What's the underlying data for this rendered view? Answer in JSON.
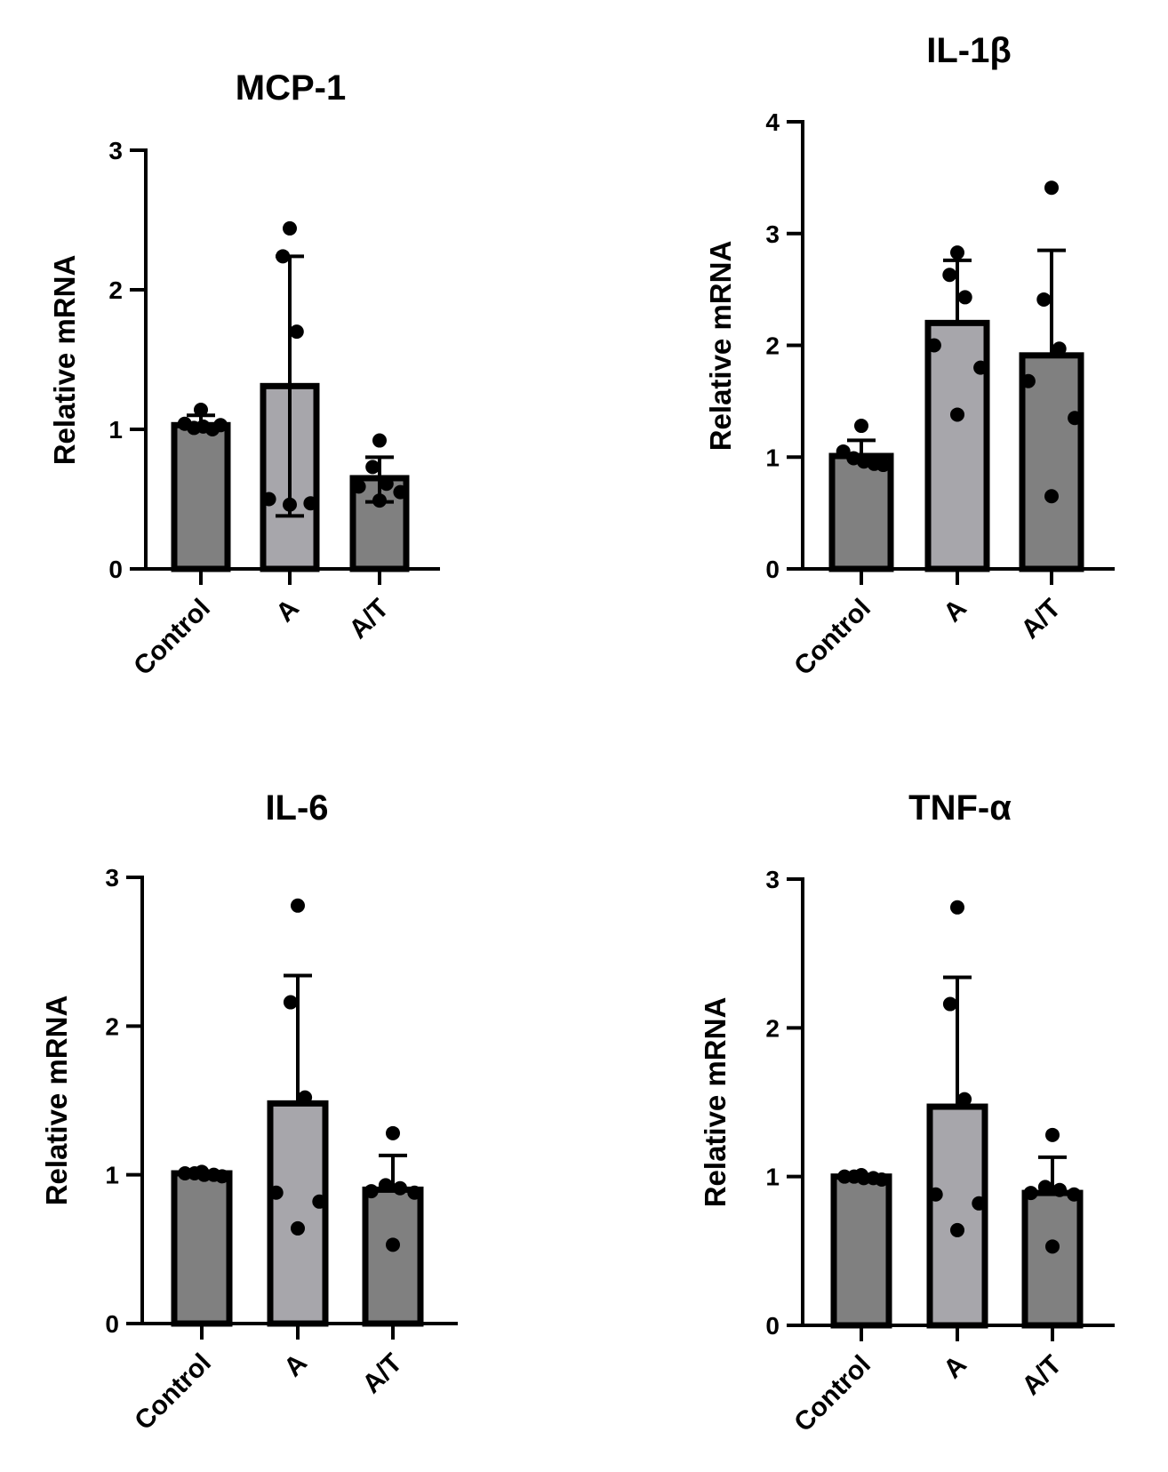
{
  "figure": {
    "colors": {
      "bar_dark": "#808080",
      "bar_light": "#a7a6ab",
      "ink": "#000000"
    }
  },
  "chart_data": [
    {
      "type": "bar",
      "title": "MCP-1",
      "ylabel": "Relative mRNA",
      "xlabel": "",
      "ylim": [
        0,
        3
      ],
      "yticks": [
        "0",
        "1",
        "2",
        "3"
      ],
      "categories": [
        "Control",
        "A",
        "A/T"
      ],
      "values": [
        1.03,
        1.31,
        0.65
      ],
      "error_upper": [
        1.1,
        2.24,
        0.8
      ],
      "error_lower": [
        null,
        0.38,
        0.48
      ],
      "points": [
        [
          1.14,
          1.04,
          1.01,
          1.02,
          1.0,
          1.03
        ],
        [
          2.44,
          2.24,
          1.7,
          0.5,
          0.47,
          0.46
        ],
        [
          0.92,
          0.73,
          0.61,
          0.59,
          0.55,
          0.49
        ]
      ]
    },
    {
      "type": "bar",
      "title": "IL-1β",
      "ylabel": "Relative mRNA",
      "xlabel": "",
      "ylim": [
        0,
        4
      ],
      "yticks": [
        "0",
        "1",
        "2",
        "3",
        "4"
      ],
      "categories": [
        "Control",
        "A",
        "A/T"
      ],
      "values": [
        1.01,
        2.2,
        1.91
      ],
      "error_upper": [
        1.15,
        2.76,
        2.85
      ],
      "error_lower": [
        null,
        null,
        null
      ],
      "points": [
        [
          1.28,
          1.05,
          0.99,
          0.96,
          0.94,
          0.93
        ],
        [
          2.83,
          2.63,
          2.43,
          2.0,
          1.8,
          1.38
        ],
        [
          3.41,
          2.41,
          1.97,
          1.68,
          1.35,
          0.65
        ]
      ]
    },
    {
      "type": "bar",
      "title": "IL-6",
      "ylabel": "Relative mRNA",
      "xlabel": "",
      "ylim": [
        0,
        3
      ],
      "yticks": [
        "0",
        "1",
        "2",
        "3"
      ],
      "categories": [
        "Control",
        "A",
        "A/T"
      ],
      "values": [
        1.01,
        1.48,
        0.9
      ],
      "error_upper": [
        1.01,
        2.34,
        1.13
      ],
      "error_lower": [
        null,
        null,
        null
      ],
      "points": [
        [
          1.02,
          1.01,
          1.01,
          1.0,
          1.0,
          0.99
        ],
        [
          2.81,
          2.16,
          1.52,
          0.88,
          0.82,
          0.64
        ],
        [
          1.28,
          0.93,
          0.91,
          0.89,
          0.88,
          0.53
        ]
      ]
    },
    {
      "type": "bar",
      "title": "TNF-α",
      "ylabel": "Relative mRNA",
      "xlabel": "",
      "ylim": [
        0,
        3
      ],
      "yticks": [
        "0",
        "1",
        "2",
        "3"
      ],
      "categories": [
        "Control",
        "A",
        "A/T"
      ],
      "values": [
        1.0,
        1.47,
        0.89
      ],
      "error_upper": [
        1.0,
        2.34,
        1.13
      ],
      "error_lower": [
        null,
        null,
        null
      ],
      "points": [
        [
          1.01,
          1.0,
          1.0,
          0.99,
          0.99,
          0.98
        ],
        [
          2.81,
          2.16,
          1.52,
          0.88,
          0.82,
          0.64
        ],
        [
          1.28,
          0.93,
          0.91,
          0.89,
          0.88,
          0.53
        ]
      ]
    }
  ]
}
